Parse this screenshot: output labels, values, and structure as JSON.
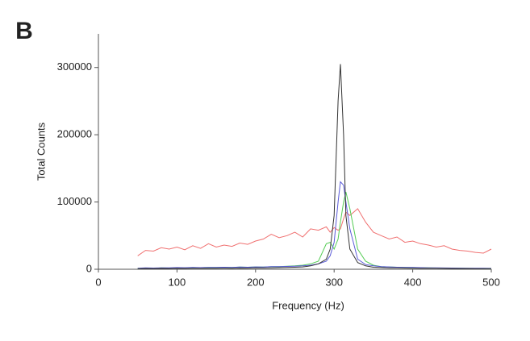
{
  "panel_label": "B",
  "chart_data": {
    "type": "line",
    "xlabel": "Frequency (Hz)",
    "ylabel": "Total Counts",
    "xlim": [
      0,
      500
    ],
    "xticks": [
      0,
      100,
      200,
      300,
      400,
      500
    ],
    "ylim": [
      0,
      350000
    ],
    "yticks": [
      0,
      100000,
      200000,
      300000
    ],
    "grid": false,
    "x": [
      50,
      60,
      70,
      80,
      90,
      100,
      110,
      120,
      130,
      140,
      150,
      160,
      170,
      180,
      190,
      200,
      210,
      220,
      230,
      240,
      250,
      260,
      270,
      280,
      290,
      295,
      300,
      305,
      308,
      312,
      315,
      320,
      330,
      340,
      350,
      360,
      370,
      380,
      390,
      400,
      410,
      420,
      430,
      440,
      450,
      460,
      470,
      480,
      490,
      500
    ],
    "series": [
      {
        "color": "#f07070",
        "values": [
          20000,
          28000,
          27000,
          32000,
          30000,
          33000,
          29000,
          35000,
          31000,
          38000,
          33000,
          36000,
          34000,
          39000,
          37000,
          42000,
          45000,
          52000,
          47000,
          50000,
          55000,
          48000,
          60000,
          58000,
          63000,
          55000,
          62000,
          58000,
          60000,
          75000,
          85000,
          80000,
          90000,
          70000,
          55000,
          50000,
          45000,
          48000,
          40000,
          42000,
          38000,
          36000,
          33000,
          35000,
          30000,
          28000,
          27000,
          25000,
          24000,
          30000
        ]
      },
      {
        "color": "#55cc55",
        "values": [
          1000,
          1500,
          1200,
          2000,
          1800,
          2200,
          2000,
          2500,
          2300,
          2800,
          2600,
          3000,
          2800,
          3200,
          3000,
          3500,
          3300,
          3800,
          4000,
          4500,
          5000,
          6000,
          8000,
          12000,
          38000,
          40000,
          30000,
          45000,
          70000,
          100000,
          115000,
          90000,
          30000,
          12000,
          6000,
          4000,
          3500,
          3000,
          2800,
          2500,
          2300,
          2000,
          1800,
          1700,
          1500,
          1400,
          1300,
          1200,
          1100,
          1000
        ]
      },
      {
        "color": "#5a5ad8",
        "values": [
          1500,
          2000,
          1800,
          2200,
          2000,
          2500,
          2300,
          2600,
          2400,
          2800,
          2600,
          3000,
          2800,
          3200,
          3000,
          3500,
          3300,
          3800,
          4000,
          4200,
          4500,
          5000,
          6000,
          8000,
          12000,
          20000,
          40000,
          100000,
          130000,
          125000,
          100000,
          60000,
          15000,
          7000,
          5000,
          4000,
          3500,
          3000,
          2800,
          2600,
          2400,
          2200,
          2000,
          1900,
          1800,
          1700,
          1600,
          1500,
          1400,
          1300
        ]
      },
      {
        "color": "#333333",
        "values": [
          1000,
          1200,
          1100,
          1300,
          1200,
          1400,
          1300,
          1500,
          1400,
          1600,
          1500,
          1700,
          1600,
          1800,
          1700,
          2000,
          1900,
          2200,
          2400,
          2600,
          3000,
          3500,
          5000,
          8000,
          15000,
          30000,
          80000,
          250000,
          305000,
          200000,
          80000,
          30000,
          10000,
          5000,
          3000,
          2500,
          2200,
          2000,
          1800,
          1700,
          1600,
          1500,
          1400,
          1300,
          1200,
          1100,
          1100,
          1000,
          1000,
          1000
        ]
      }
    ]
  }
}
